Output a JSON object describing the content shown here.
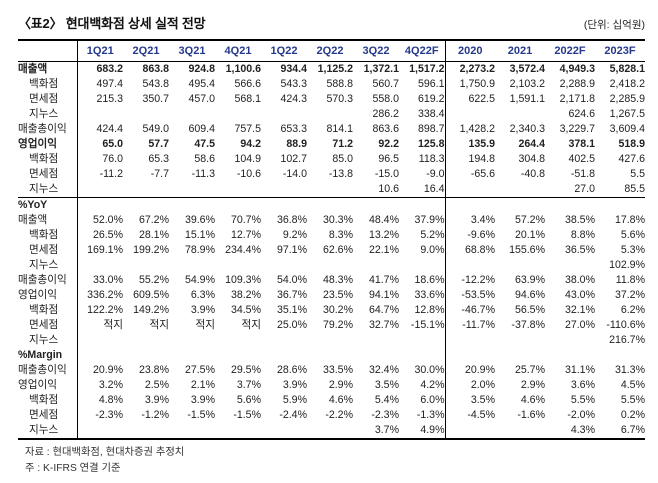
{
  "title": "〈표2〉 현대백화점 상세 실적 전망",
  "unit_label": "(단위: 십억원)",
  "accent_color": "#24398c",
  "table": {
    "columns": [
      "1Q21",
      "2Q21",
      "3Q21",
      "4Q21",
      "1Q22",
      "2Q22",
      "3Q22",
      "4Q22F",
      "2020",
      "2021",
      "2022F",
      "2023F"
    ],
    "rows": [
      {
        "label": "매출액",
        "bold": true,
        "indent": false,
        "section_end": false,
        "values": [
          "683.2",
          "863.8",
          "924.8",
          "1,100.6",
          "934.4",
          "1,125.2",
          "1,372.1",
          "1,517.2",
          "2,273.2",
          "3,572.4",
          "4,949.3",
          "5,828.1"
        ]
      },
      {
        "label": "백화점",
        "bold": false,
        "indent": true,
        "section_end": false,
        "values": [
          "497.4",
          "543.8",
          "495.4",
          "566.6",
          "543.3",
          "588.8",
          "560.7",
          "596.1",
          "1,750.9",
          "2,103.2",
          "2,288.9",
          "2,418.2"
        ]
      },
      {
        "label": "면세점",
        "bold": false,
        "indent": true,
        "section_end": false,
        "values": [
          "215.3",
          "350.7",
          "457.0",
          "568.1",
          "424.3",
          "570.3",
          "558.0",
          "619.2",
          "622.5",
          "1,591.1",
          "2,171.8",
          "2,285.9"
        ]
      },
      {
        "label": "지누스",
        "bold": false,
        "indent": true,
        "section_end": false,
        "values": [
          "",
          "",
          "",
          "",
          "",
          "",
          "286.2",
          "338.4",
          "",
          "",
          "624.6",
          "1,267.5"
        ]
      },
      {
        "label": "매출총이익",
        "bold": false,
        "indent": false,
        "section_end": false,
        "values": [
          "424.4",
          "549.0",
          "609.4",
          "757.5",
          "653.3",
          "814.1",
          "863.6",
          "898.7",
          "1,428.2",
          "2,340.3",
          "3,229.7",
          "3,609.4"
        ]
      },
      {
        "label": "영업이익",
        "bold": true,
        "indent": false,
        "section_end": false,
        "values": [
          "65.0",
          "57.7",
          "47.5",
          "94.2",
          "88.9",
          "71.2",
          "92.2",
          "125.8",
          "135.9",
          "264.4",
          "378.1",
          "518.9"
        ]
      },
      {
        "label": "백화점",
        "bold": false,
        "indent": true,
        "section_end": false,
        "values": [
          "76.0",
          "65.3",
          "58.6",
          "104.9",
          "102.7",
          "85.0",
          "96.5",
          "118.3",
          "194.8",
          "304.8",
          "402.5",
          "427.6"
        ]
      },
      {
        "label": "면세점",
        "bold": false,
        "indent": true,
        "section_end": false,
        "values": [
          "-11.2",
          "-7.7",
          "-11.3",
          "-10.6",
          "-14.0",
          "-13.8",
          "-15.0",
          "-9.0",
          "-65.6",
          "-40.8",
          "-51.8",
          "5.5"
        ]
      },
      {
        "label": "지누스",
        "bold": false,
        "indent": true,
        "section_end": true,
        "values": [
          "",
          "",
          "",
          "",
          "",
          "",
          "10.6",
          "16.4",
          "",
          "",
          "27.0",
          "85.5"
        ]
      },
      {
        "label": "%YoY",
        "bold": true,
        "indent": false,
        "section_end": false,
        "values": [
          "",
          "",
          "",
          "",
          "",
          "",
          "",
          "",
          "",
          "",
          "",
          ""
        ]
      },
      {
        "label": "매출액",
        "bold": false,
        "indent": false,
        "section_end": false,
        "values": [
          "52.0%",
          "67.2%",
          "39.6%",
          "70.7%",
          "36.8%",
          "30.3%",
          "48.4%",
          "37.9%",
          "3.4%",
          "57.2%",
          "38.5%",
          "17.8%"
        ]
      },
      {
        "label": "백화점",
        "bold": false,
        "indent": true,
        "section_end": false,
        "values": [
          "26.5%",
          "28.1%",
          "15.1%",
          "12.7%",
          "9.2%",
          "8.3%",
          "13.2%",
          "5.2%",
          "-9.6%",
          "20.1%",
          "8.8%",
          "5.6%"
        ]
      },
      {
        "label": "면세점",
        "bold": false,
        "indent": true,
        "section_end": false,
        "values": [
          "169.1%",
          "199.2%",
          "78.9%",
          "234.4%",
          "97.1%",
          "62.6%",
          "22.1%",
          "9.0%",
          "68.8%",
          "155.6%",
          "36.5%",
          "5.3%"
        ]
      },
      {
        "label": "지누스",
        "bold": false,
        "indent": true,
        "section_end": false,
        "values": [
          "",
          "",
          "",
          "",
          "",
          "",
          "",
          "",
          "",
          "",
          "",
          "102.9%"
        ]
      },
      {
        "label": "매출총이익",
        "bold": false,
        "indent": false,
        "section_end": false,
        "values": [
          "33.0%",
          "55.2%",
          "54.9%",
          "109.3%",
          "54.0%",
          "48.3%",
          "41.7%",
          "18.6%",
          "-12.2%",
          "63.9%",
          "38.0%",
          "11.8%"
        ]
      },
      {
        "label": "영업이익",
        "bold": false,
        "indent": false,
        "section_end": false,
        "values": [
          "336.2%",
          "609.5%",
          "6.3%",
          "38.2%",
          "36.7%",
          "23.5%",
          "94.1%",
          "33.6%",
          "-53.5%",
          "94.6%",
          "43.0%",
          "37.2%"
        ]
      },
      {
        "label": "백화점",
        "bold": false,
        "indent": true,
        "section_end": false,
        "values": [
          "122.2%",
          "149.2%",
          "3.9%",
          "34.5%",
          "35.1%",
          "30.2%",
          "64.7%",
          "12.8%",
          "-46.7%",
          "56.5%",
          "32.1%",
          "6.2%"
        ]
      },
      {
        "label": "면세점",
        "bold": false,
        "indent": true,
        "section_end": false,
        "values": [
          "적지",
          "적지",
          "적지",
          "적지",
          "25.0%",
          "79.2%",
          "32.7%",
          "-15.1%",
          "-11.7%",
          "-37.8%",
          "27.0%",
          "-110.6%"
        ]
      },
      {
        "label": "지누스",
        "bold": false,
        "indent": true,
        "section_end": false,
        "values": [
          "",
          "",
          "",
          "",
          "",
          "",
          "",
          "",
          "",
          "",
          "",
          "216.7%"
        ]
      },
      {
        "label": "%Margin",
        "bold": true,
        "indent": false,
        "section_end": false,
        "values": [
          "",
          "",
          "",
          "",
          "",
          "",
          "",
          "",
          "",
          "",
          "",
          ""
        ]
      },
      {
        "label": "매출총이익",
        "bold": false,
        "indent": false,
        "section_end": false,
        "values": [
          "20.9%",
          "23.8%",
          "27.5%",
          "29.5%",
          "28.6%",
          "33.5%",
          "32.4%",
          "30.0%",
          "20.9%",
          "25.7%",
          "31.1%",
          "31.3%"
        ]
      },
      {
        "label": "영업이익",
        "bold": false,
        "indent": false,
        "section_end": false,
        "values": [
          "3.2%",
          "2.5%",
          "2.1%",
          "3.7%",
          "3.9%",
          "2.9%",
          "3.5%",
          "4.2%",
          "2.0%",
          "2.9%",
          "3.6%",
          "4.5%"
        ]
      },
      {
        "label": "백화점",
        "bold": false,
        "indent": true,
        "section_end": false,
        "values": [
          "4.8%",
          "3.9%",
          "3.9%",
          "5.6%",
          "5.9%",
          "4.6%",
          "5.4%",
          "6.0%",
          "3.5%",
          "4.6%",
          "5.5%",
          "5.5%"
        ]
      },
      {
        "label": "면세점",
        "bold": false,
        "indent": true,
        "section_end": false,
        "values": [
          "-2.3%",
          "-1.2%",
          "-1.5%",
          "-1.5%",
          "-2.4%",
          "-2.2%",
          "-2.3%",
          "-1.3%",
          "-4.5%",
          "-1.6%",
          "-2.0%",
          "0.2%"
        ]
      },
      {
        "label": "지누스",
        "bold": false,
        "indent": true,
        "section_end": false,
        "values": [
          "",
          "",
          "",
          "",
          "",
          "",
          "3.7%",
          "4.9%",
          "",
          "",
          "4.3%",
          "6.7%"
        ]
      }
    ]
  },
  "footnotes": {
    "source": "자료 : 현대백화점, 현대차증권 추정치",
    "note": "주 : K-IFRS 연결 기준"
  }
}
